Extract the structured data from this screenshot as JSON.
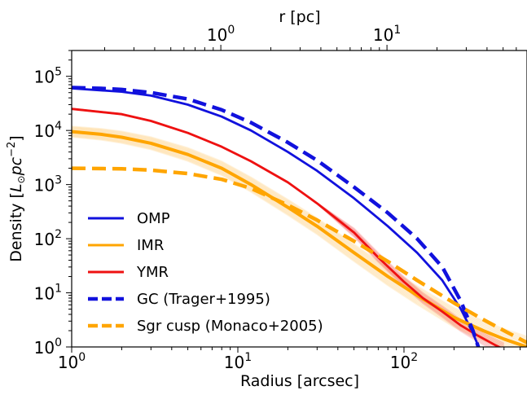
{
  "chart_data": {
    "type": "line",
    "x_scale": "log",
    "y_scale": "log",
    "xlim": [
      1,
      550
    ],
    "ylim": [
      1,
      300000
    ],
    "xlabel": "Radius [arcsec]",
    "ylabel": "Density [L⊙pc⁻²]",
    "ylabel_parts": {
      "prefix": "Density [",
      "L": "L",
      "sun": "⊙",
      "pc": "pc",
      "sup": "−2",
      "suffix": "]"
    },
    "top_xlabel": "r [pc]",
    "x_ticks": [
      {
        "value": 1,
        "base": "10",
        "exp": "0"
      },
      {
        "value": 10,
        "base": "10",
        "exp": "1"
      },
      {
        "value": 100,
        "base": "10",
        "exp": "2"
      }
    ],
    "top_x_ticks": [
      {
        "radius_arcsec": 7.9,
        "base": "10",
        "exp": "0"
      },
      {
        "radius_arcsec": 79,
        "base": "10",
        "exp": "1"
      }
    ],
    "y_ticks": [
      {
        "value": 1,
        "base": "10",
        "exp": "0"
      },
      {
        "value": 10,
        "base": "10",
        "exp": "1"
      },
      {
        "value": 100,
        "base": "10",
        "exp": "2"
      },
      {
        "value": 1000,
        "base": "10",
        "exp": "3"
      },
      {
        "value": 10000,
        "base": "10",
        "exp": "4"
      },
      {
        "value": 100000,
        "base": "10",
        "exp": "5"
      }
    ],
    "legend_position": "lower-left",
    "series": [
      {
        "name": "OMP",
        "color": "#1111dd",
        "style": "solid",
        "x": [
          1,
          2,
          3,
          5,
          8,
          12,
          20,
          30,
          50,
          80,
          120,
          170,
          220,
          260,
          290,
          310
        ],
        "y": [
          60000,
          52000,
          44000,
          30000,
          18000,
          10000,
          4000,
          1800,
          560,
          170,
          55,
          17,
          5,
          1.8,
          0.8,
          0.4
        ]
      },
      {
        "name": "IMR",
        "color": "#ffa500",
        "style": "solid",
        "band": true,
        "x": [
          1,
          1.5,
          2,
          3,
          5,
          8,
          12,
          20,
          30,
          50,
          80,
          120,
          200,
          300,
          400,
          550
        ],
        "y": [
          9500,
          8500,
          7500,
          5800,
          3600,
          2000,
          1000,
          380,
          170,
          55,
          20,
          9,
          3.5,
          2,
          1.4,
          1.0
        ]
      },
      {
        "name": "YMR",
        "color": "#ee1111",
        "style": "solid",
        "x": [
          1,
          2,
          3,
          5,
          8,
          12,
          20,
          30,
          50,
          70,
          100,
          130,
          170,
          220,
          280,
          350,
          400
        ],
        "y": [
          25000,
          20000,
          15000,
          9000,
          5000,
          2700,
          1100,
          450,
          130,
          45,
          16,
          8,
          4.5,
          2.5,
          1.6,
          1.1,
          0.9
        ]
      },
      {
        "name": "GC (Trager+1995)",
        "color": "#1111dd",
        "style": "dashed",
        "x": [
          1,
          1.5,
          2,
          3,
          5,
          8,
          12,
          20,
          30,
          50,
          80,
          120,
          170,
          220,
          260,
          280,
          300
        ],
        "y": [
          62000,
          60000,
          57000,
          50000,
          38000,
          24000,
          14000,
          6000,
          2800,
          900,
          300,
          100,
          30,
          7,
          2,
          1,
          0.5
        ]
      },
      {
        "name": "Sgr cusp (Monaco+2005)",
        "color": "#ffa500",
        "style": "dashed",
        "x": [
          1,
          2,
          3,
          5,
          8,
          12,
          20,
          30,
          50,
          80,
          120,
          200,
          300,
          400,
          550
        ],
        "y": [
          2000,
          1950,
          1850,
          1600,
          1250,
          850,
          420,
          220,
          90,
          38,
          17,
          6.5,
          3.2,
          2,
          1.2
        ]
      }
    ]
  }
}
